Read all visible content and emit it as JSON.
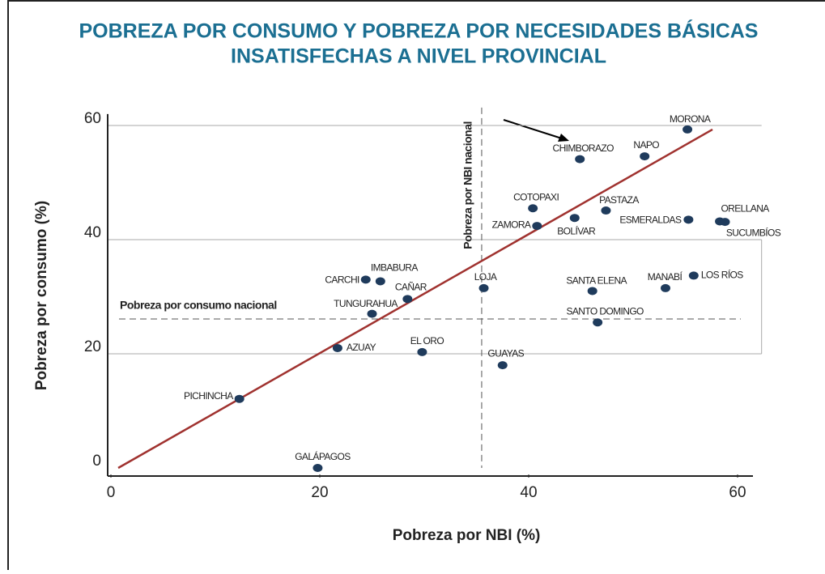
{
  "chart_data": {
    "type": "scatter",
    "title": "POBREZA POR CONSUMO Y POBREZA POR NECESIDADES BÁSICAS",
    "subtitle": "INSATISFECHAS A NIVEL PROVINCIAL",
    "xlabel": "Pobreza por NBI (%)",
    "ylabel": "Pobreza por consumo (%)",
    "xlim": [
      0,
      62
    ],
    "ylim": [
      0,
      62
    ],
    "xticks": [
      0,
      20,
      40,
      60
    ],
    "yticks": [
      0,
      20,
      40,
      60
    ],
    "grid": true,
    "color": "#1f3b5c",
    "points": [
      "MORONA",
      "CHIMBORAZO",
      "NAPO",
      "COTOPAXI",
      "PASTAZA",
      "ZAMORA",
      "BOLÍVAR",
      "ESMERALDAS",
      "ORELLANA",
      "SUCUMBÍOS",
      "LOJA",
      "SANTA ELENA",
      "MANABÍ",
      "LOS RÍOS",
      "SANTO DOMINGO",
      "CARCHI",
      "IMBABURA",
      "CAÑAR",
      "TUNGURAHUA",
      "AZUAY",
      "EL ORO",
      "GUAYAS",
      "PICHINCHA",
      "GALÁPAGOS"
    ],
    "x": [
      55.2,
      44.9,
      51.1,
      40.4,
      47.4,
      40.8,
      44.4,
      55.3,
      58.3,
      58.8,
      35.7,
      46.1,
      53.1,
      55.8,
      46.6,
      24.4,
      25.8,
      28.4,
      25.0,
      21.7,
      29.8,
      37.5,
      12.3,
      19.8
    ],
    "y": [
      59.3,
      54.1,
      54.6,
      45.5,
      45.1,
      42.4,
      43.8,
      43.5,
      43.2,
      43.1,
      31.5,
      31.0,
      31.5,
      33.7,
      25.5,
      33.0,
      32.7,
      29.6,
      27.0,
      21.0,
      20.3,
      18.0,
      12.1,
      0
    ],
    "reference_lines": {
      "x": 35.5,
      "x_label": "Pobreza por NBI nacional",
      "y": 26.1,
      "y_label": "Pobreza por consumo nacional"
    },
    "trend_line": {
      "color": "#a0322f",
      "x": [
        0.7,
        57.6
      ],
      "y": [
        0,
        59.3
      ]
    }
  }
}
